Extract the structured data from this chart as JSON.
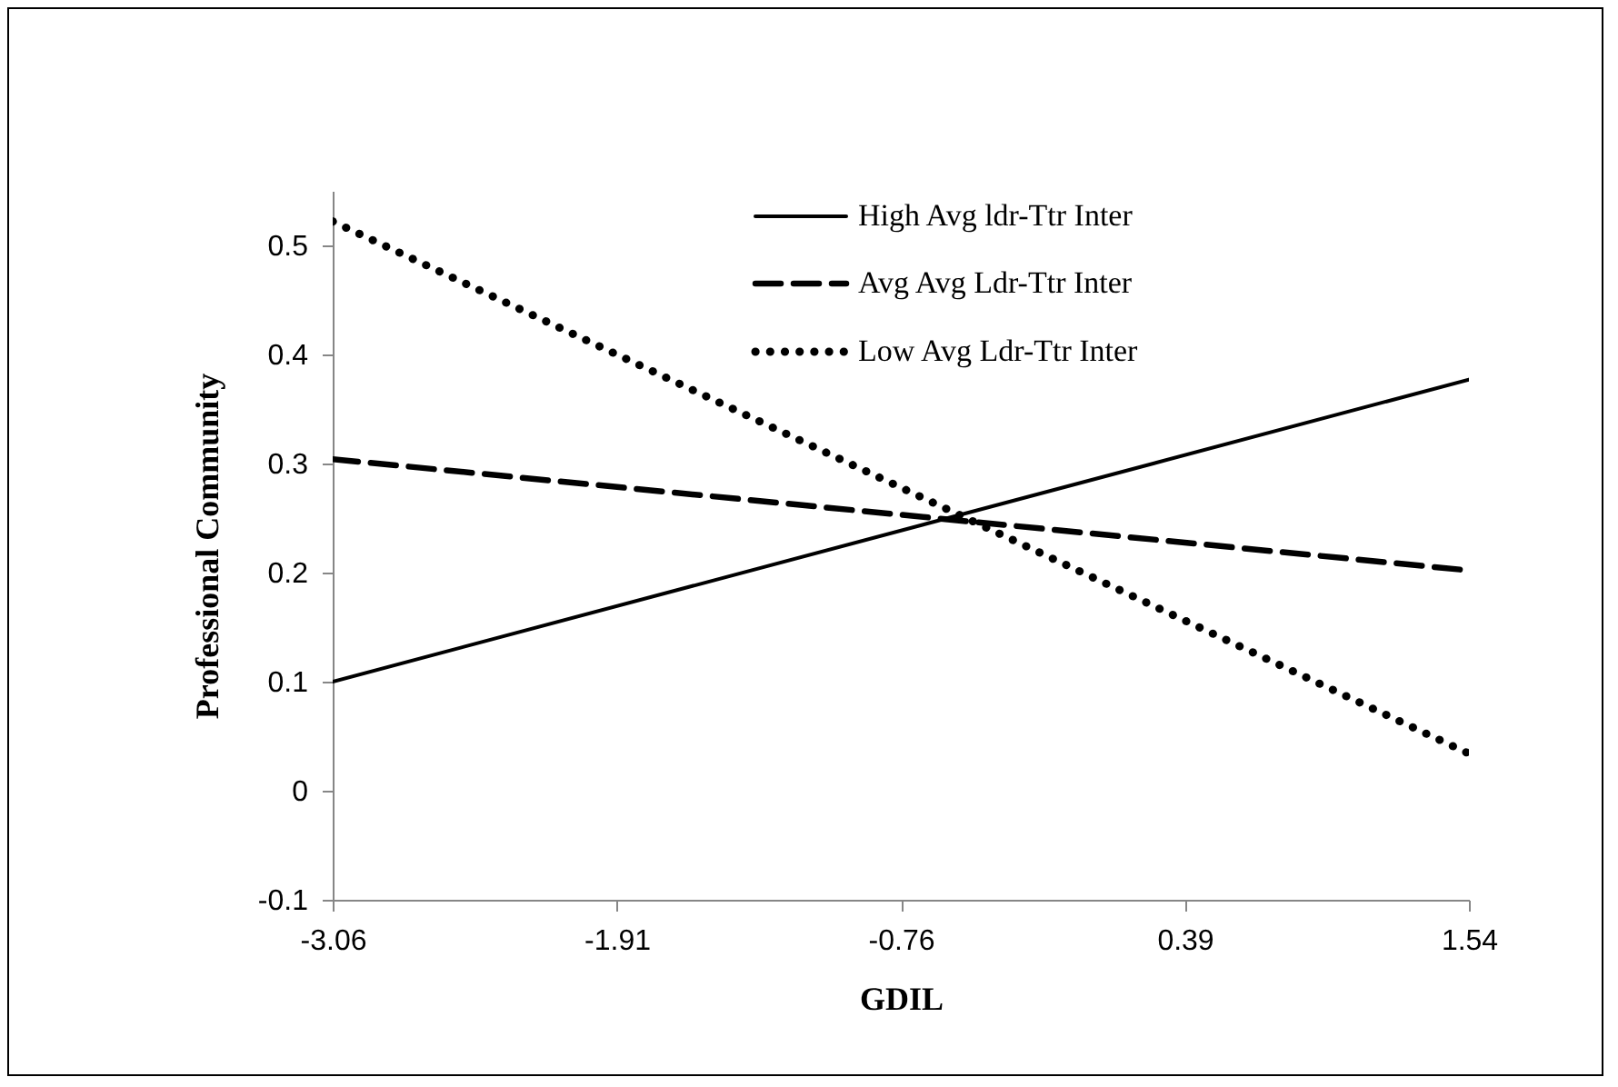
{
  "chart_data": {
    "type": "line",
    "xlabel": "GDIL",
    "ylabel": "Professional Community",
    "x": [
      -3.06,
      1.54
    ],
    "xlim": [
      -3.06,
      1.54
    ],
    "xticks": [
      -3.06,
      -1.91,
      -0.76,
      0.39,
      1.54
    ],
    "ylim": [
      -0.1,
      0.55
    ],
    "yticks": [
      -0.1,
      0,
      0.1,
      0.2,
      0.3,
      0.4,
      0.5
    ],
    "series": [
      {
        "name": "High Avg ldr-Ttr Inter",
        "color": "#000000",
        "line_style": "solid",
        "values": [
          0.1,
          0.377
        ]
      },
      {
        "name": "Avg Avg Ldr-Ttr Inter",
        "color": "#000000",
        "line_style": "dashed",
        "values": [
          0.304,
          0.202
        ]
      },
      {
        "name": "Low Avg Ldr-Ttr Inter",
        "color": "#000000",
        "line_style": "dotted",
        "values": [
          0.522,
          0.034
        ]
      }
    ],
    "grid": false,
    "legend": "top right",
    "marker": "none"
  }
}
